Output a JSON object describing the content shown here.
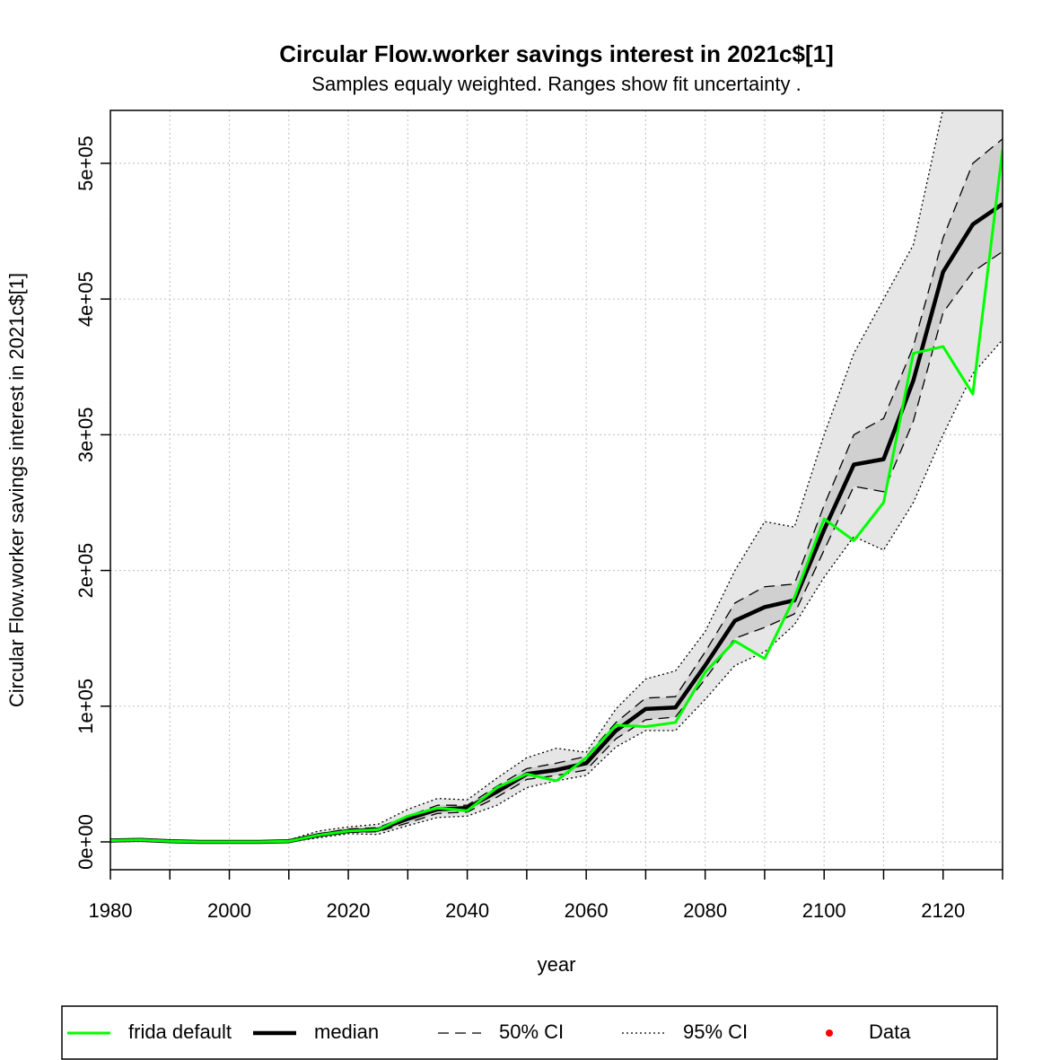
{
  "chart_data": {
    "type": "line",
    "title": "Circular Flow.worker savings interest in 2021c$[1]",
    "subtitle": "Samples equaly weighted. Ranges show  fit uncertainty .",
    "x_label": "year",
    "y_label": "Circular Flow.worker savings interest in 2021c$[1]",
    "x": [
      1980,
      1985,
      1990,
      1995,
      2000,
      2005,
      2010,
      2015,
      2020,
      2025,
      2030,
      2035,
      2040,
      2045,
      2050,
      2055,
      2060,
      2065,
      2070,
      2075,
      2080,
      2085,
      2090,
      2095,
      2100,
      2105,
      2110,
      2115,
      2120,
      2125,
      2130
    ],
    "xlim": [
      1980,
      2130
    ],
    "ylim": [
      -20500,
      539000
    ],
    "xticks": [
      1980,
      2000,
      2020,
      2040,
      2060,
      2080,
      2100,
      2120
    ],
    "x_minor_ticks": [
      1990,
      2010,
      2030,
      2050,
      2070,
      2090,
      2110,
      2130
    ],
    "yticks": [
      {
        "value": 0,
        "label": "0e+00"
      },
      {
        "value": 100000,
        "label": "1e+05"
      },
      {
        "value": 200000,
        "label": "2e+05"
      },
      {
        "value": 300000,
        "label": "3e+05"
      },
      {
        "value": 400000,
        "label": "4e+05"
      },
      {
        "value": 500000,
        "label": "5e+05"
      }
    ],
    "grid": true,
    "series": [
      {
        "name": "frida default",
        "color": "#00ff00",
        "values": [
          1000,
          1500,
          500,
          0,
          0,
          0,
          500,
          5000,
          8000,
          9000,
          19000,
          25000,
          23000,
          40000,
          50000,
          45000,
          62000,
          86000,
          85000,
          88000,
          125000,
          148000,
          135000,
          180000,
          238000,
          222000,
          250000,
          360000,
          365000,
          330000,
          510000
        ]
      },
      {
        "name": "median",
        "color": "#000000",
        "values": [
          1000,
          1500,
          500,
          0,
          0,
          0,
          500,
          5000,
          8000,
          9000,
          17000,
          24000,
          25000,
          37000,
          50000,
          53000,
          58000,
          82000,
          98000,
          99000,
          130000,
          163000,
          173000,
          178000,
          230000,
          278000,
          282000,
          340000,
          420000,
          455000,
          470000
        ]
      }
    ],
    "bands": [
      {
        "name": "95% CI",
        "color": "#e6e6e6",
        "dash": "dotted",
        "upper": [
          2000,
          2500,
          1500,
          500,
          0,
          0,
          1500,
          8000,
          11000,
          13000,
          24000,
          32000,
          31000,
          47000,
          62000,
          69000,
          66000,
          98000,
          120000,
          126000,
          155000,
          200000,
          236000,
          232000,
          300000,
          360000,
          400000,
          440000,
          540000,
          620000,
          680000
        ],
        "lower": [
          0,
          500,
          0,
          0,
          0,
          0,
          0,
          3000,
          6000,
          5500,
          12000,
          18000,
          19000,
          27000,
          40000,
          45000,
          49000,
          70000,
          82000,
          82000,
          105000,
          130000,
          140000,
          160000,
          195000,
          225000,
          215000,
          250000,
          300000,
          345000,
          370000
        ]
      },
      {
        "name": "50% CI",
        "color": "#d0d0d0",
        "dash": "dashed",
        "upper": [
          1500,
          2000,
          1000,
          0,
          0,
          0,
          1000,
          6000,
          9500,
          10500,
          19000,
          27000,
          27000,
          41000,
          54000,
          58000,
          63000,
          88000,
          106000,
          107000,
          140000,
          176000,
          188000,
          190000,
          248000,
          300000,
          312000,
          365000,
          445000,
          500000,
          518000
        ],
        "lower": [
          500,
          1000,
          0,
          0,
          0,
          0,
          0,
          4000,
          7000,
          7500,
          14000,
          21000,
          22000,
          33000,
          46000,
          49000,
          53000,
          76000,
          90000,
          92000,
          120000,
          150000,
          158000,
          168000,
          215000,
          262000,
          258000,
          310000,
          390000,
          420000,
          435000
        ]
      }
    ],
    "data_entry": {
      "name": "Data",
      "color": "#ff0000"
    }
  }
}
